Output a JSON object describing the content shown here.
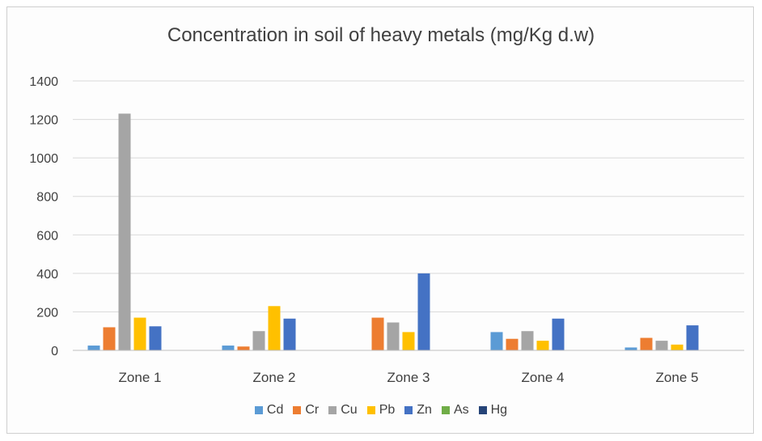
{
  "chart_data": {
    "type": "bar",
    "title": "Concentration in soil of heavy metals (mg/Kg d.w)",
    "xlabel": "",
    "ylabel": "",
    "ylim": [
      0,
      1400
    ],
    "yticks": [
      0,
      200,
      400,
      600,
      800,
      1000,
      1200,
      1400
    ],
    "grid": true,
    "legend_position": "bottom",
    "categories": [
      "Zone 1",
      "Zone 2",
      "Zone 3",
      "Zone 4",
      "Zone 5"
    ],
    "series": [
      {
        "name": "Cd",
        "color": "#5b9bd5",
        "values": [
          25,
          25,
          0,
          95,
          15
        ]
      },
      {
        "name": "Cr",
        "color": "#ed7d31",
        "values": [
          120,
          20,
          170,
          60,
          65
        ]
      },
      {
        "name": "Cu",
        "color": "#a5a5a5",
        "values": [
          1230,
          100,
          145,
          100,
          50
        ]
      },
      {
        "name": "Pb",
        "color": "#ffc000",
        "values": [
          170,
          230,
          95,
          50,
          30
        ]
      },
      {
        "name": "Zn",
        "color": "#4472c4",
        "values": [
          125,
          165,
          400,
          165,
          130
        ]
      },
      {
        "name": "As",
        "color": "#70ad47",
        "values": [
          0,
          0,
          0,
          0,
          0
        ]
      },
      {
        "name": "Hg",
        "color": "#264478",
        "values": [
          0,
          0,
          0,
          0,
          0
        ]
      }
    ]
  }
}
